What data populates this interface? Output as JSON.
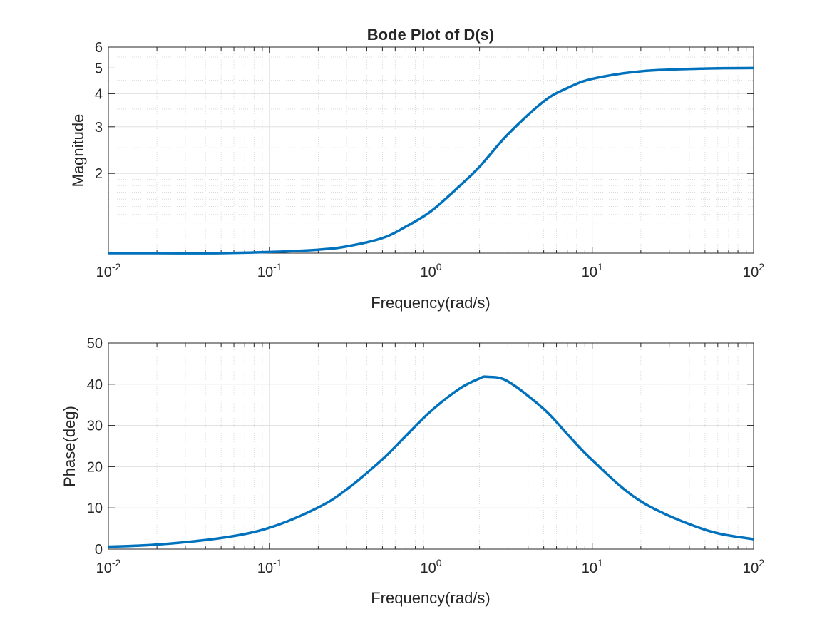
{
  "chart_data": [
    {
      "type": "line",
      "title": "Bode Plot of D(s)",
      "xlabel": "Frequency(rad/s)",
      "ylabel": "Magnitude",
      "xscale": "log",
      "yscale": "log",
      "xlim": [
        0.01,
        100
      ],
      "ylim": [
        1,
        6
      ],
      "grid": true,
      "minor_grid": true,
      "line_color": "#0072BD",
      "x_tick_labels": [
        {
          "base": "10",
          "exp": "-2"
        },
        {
          "base": "10",
          "exp": "-1"
        },
        {
          "base": "10",
          "exp": "0"
        },
        {
          "base": "10",
          "exp": "1"
        },
        {
          "base": "10",
          "exp": "2"
        }
      ],
      "y_tick_labels": [
        "2",
        "3",
        "4",
        "5",
        "6"
      ],
      "series": [
        {
          "x": [
            0.01,
            0.02,
            0.05,
            0.1,
            0.2,
            0.3,
            0.5,
            0.7,
            1,
            1.5,
            2,
            3,
            5,
            7,
            10,
            20,
            50,
            100
          ],
          "y": [
            1.0,
            1.0,
            1.0,
            1.01,
            1.03,
            1.06,
            1.14,
            1.26,
            1.44,
            1.79,
            2.12,
            2.81,
            3.74,
            4.2,
            4.55,
            4.86,
            4.98,
            5.0
          ]
        }
      ]
    },
    {
      "type": "line",
      "title": "",
      "xlabel": "Frequency(rad/s)",
      "ylabel": "Phase(deg)",
      "xscale": "log",
      "yscale": "linear",
      "xlim": [
        0.01,
        100
      ],
      "ylim": [
        0,
        50
      ],
      "grid": true,
      "minor_grid": true,
      "line_color": "#0072BD",
      "x_tick_labels": [
        {
          "base": "10",
          "exp": "-2"
        },
        {
          "base": "10",
          "exp": "-1"
        },
        {
          "base": "10",
          "exp": "0"
        },
        {
          "base": "10",
          "exp": "1"
        },
        {
          "base": "10",
          "exp": "2"
        }
      ],
      "y_tick_labels": [
        "0",
        "10",
        "20",
        "30",
        "40",
        "50"
      ],
      "series": [
        {
          "x": [
            0.01,
            0.02,
            0.05,
            0.1,
            0.2,
            0.3,
            0.5,
            0.7,
            1,
            1.5,
            2,
            2.236,
            3,
            5,
            7,
            10,
            20,
            50,
            100
          ],
          "y": [
            0.6,
            1.1,
            2.7,
            5.2,
            10.1,
            14.5,
            21.8,
            27.5,
            33.5,
            38.9,
            41.4,
            41.8,
            40.7,
            34.0,
            27.9,
            21.6,
            11.6,
            4.7,
            2.4
          ]
        }
      ]
    }
  ]
}
